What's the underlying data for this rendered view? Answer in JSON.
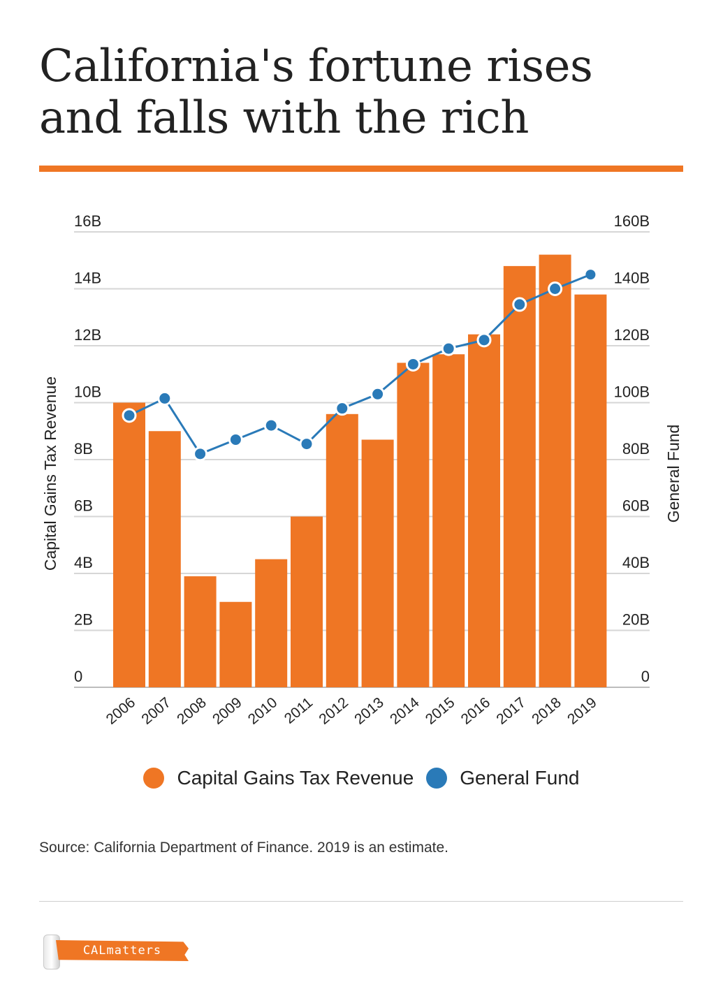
{
  "title": "California's fortune rises and falls with the rich",
  "colors": {
    "accent": "#ef7624",
    "bar": "#ef7624",
    "line": "#2a7ab8",
    "grid": "#d6d6d6"
  },
  "chart_data": {
    "type": "bar",
    "categories": [
      "2006",
      "2007",
      "2008",
      "2009",
      "2010",
      "2011",
      "2012",
      "2013",
      "2014",
      "2015",
      "2016",
      "2017",
      "2018",
      "2019"
    ],
    "series": [
      {
        "name": "Capital Gains Tax Revenue",
        "type": "bar",
        "axis": "left",
        "values": [
          10.0,
          9.0,
          3.9,
          3.0,
          4.5,
          6.0,
          9.6,
          8.7,
          11.4,
          11.7,
          12.4,
          14.8,
          15.2,
          13.8
        ]
      },
      {
        "name": "General Fund",
        "type": "line",
        "axis": "right",
        "values": [
          95.5,
          101.5,
          82.0,
          87.0,
          92.0,
          85.5,
          98.0,
          103.0,
          113.5,
          119.0,
          122.0,
          134.5,
          140.0,
          145.0
        ]
      }
    ],
    "left_axis": {
      "label": "Capital Gains Tax Revenue",
      "range": [
        0,
        16
      ],
      "ticks": [
        {
          "value": 0,
          "label": "0"
        },
        {
          "value": 2,
          "label": "2B"
        },
        {
          "value": 4,
          "label": "4B"
        },
        {
          "value": 6,
          "label": "6B"
        },
        {
          "value": 8,
          "label": "8B"
        },
        {
          "value": 10,
          "label": "10B"
        },
        {
          "value": 12,
          "label": "12B"
        },
        {
          "value": 14,
          "label": "14B"
        },
        {
          "value": 16,
          "label": "16B"
        }
      ]
    },
    "right_axis": {
      "label": "General Fund",
      "range": [
        0,
        160
      ],
      "ticks": [
        {
          "value": 0,
          "label": "0"
        },
        {
          "value": 20,
          "label": "20B"
        },
        {
          "value": 40,
          "label": "40B"
        },
        {
          "value": 60,
          "label": "60B"
        },
        {
          "value": 80,
          "label": "80B"
        },
        {
          "value": 100,
          "label": "100B"
        },
        {
          "value": 120,
          "label": "120B"
        },
        {
          "value": 140,
          "label": "140B"
        },
        {
          "value": 160,
          "label": "160B"
        }
      ]
    },
    "grid": true,
    "legend_position": "bottom-center"
  },
  "legend": [
    {
      "label": "Capital Gains Tax Revenue",
      "color": "#ef7624"
    },
    {
      "label": "General Fund",
      "color": "#2a7ab8"
    }
  ],
  "source": "Source: California Department of Finance. 2019 is an estimate.",
  "logo_text": "CALmatters"
}
